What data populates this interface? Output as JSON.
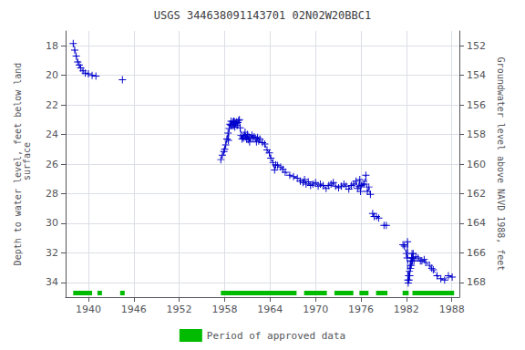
{
  "chart_data": {
    "type": "line",
    "title": "USGS 344638091143701 02N02W20BBC1",
    "ylabel": "Depth to water level, feet below land\n surface",
    "y2label": "Groundwater level above NAVD 1988, feet",
    "xlim": [
      1937,
      1989
    ],
    "xticks": [
      1940,
      1946,
      1952,
      1958,
      1964,
      1970,
      1976,
      1982,
      1988
    ],
    "ylim": [
      17,
      35
    ],
    "yticks": [
      18,
      20,
      22,
      24,
      26,
      28,
      30,
      32,
      34
    ],
    "y2lim": [
      151,
      169
    ],
    "y2ticks": [
      168,
      166,
      164,
      162,
      160,
      158,
      156,
      154,
      152
    ],
    "grid": true,
    "x": [
      1938.0,
      1938.2,
      1938.4,
      1938.6,
      1938.8,
      1939.0,
      1939.3,
      1939.6,
      1940.0,
      1940.5,
      1941.0,
      null,
      1944.5,
      null,
      1957.5,
      1957.7,
      1957.9,
      1958.0,
      1958.15,
      1958.3,
      1958.45,
      1958.5,
      1958.6,
      1958.7,
      1958.8,
      1958.85,
      1958.9,
      1959.0,
      1959.1,
      1959.15,
      1959.2,
      1959.25,
      1959.3,
      1959.35,
      1959.45,
      1959.55,
      1959.65,
      1959.75,
      1959.85,
      1959.95,
      1960.05,
      1960.15,
      1960.3,
      1960.4,
      1960.5,
      1960.6,
      1960.7,
      1960.8,
      1960.9,
      1961.0,
      1961.1,
      1961.2,
      1961.3,
      1961.45,
      1961.6,
      1961.75,
      1961.9,
      1962.05,
      1962.2,
      1962.35,
      1962.5,
      1962.65,
      1963.0,
      1963.3,
      1963.6,
      1963.9,
      1964.1,
      1964.4,
      1964.6,
      1964.75,
      1965.0,
      1965.4,
      1965.7,
      1966.0,
      1966.6,
      1967.1,
      1967.6,
      1968.0,
      1968.35,
      1968.55,
      1968.75,
      1969.05,
      1969.35,
      1969.65,
      1970.0,
      1970.35,
      1970.65,
      1971.0,
      1971.4,
      1971.75,
      1972.05,
      1972.35,
      1972.65,
      1973.05,
      1973.4,
      1973.75,
      1974.05,
      null,
      1974.4,
      1974.75,
      1975.05,
      1975.35,
      1975.55,
      1975.75,
      1975.85,
      1975.95,
      null,
      1976.05,
      1976.25,
      1976.45,
      1976.65,
      1976.85,
      1977.05,
      1977.25,
      null,
      1977.55,
      1977.75,
      1978.05,
      1978.35,
      null,
      1979.05,
      1979.35,
      null,
      1981.55,
      1981.75,
      1982.0,
      1982.1,
      1982.15,
      1982.2,
      1982.25,
      1982.3,
      1982.35,
      1982.4,
      1982.45,
      1982.5,
      1982.55,
      1982.6,
      1982.65,
      1982.7,
      1982.75,
      1982.8,
      1982.85,
      1982.9,
      1983.0,
      1983.25,
      1983.55,
      1983.85,
      1984.05,
      1984.35,
      1984.55,
      1985.05,
      1985.35,
      1985.55,
      1986.05,
      1986.55,
      1987.05,
      1987.55,
      1988.05
    ],
    "series": [
      {
        "color": "#0000cc",
        "marker": "plus",
        "line_style": "dashed",
        "values": [
          17.85,
          18.3,
          18.7,
          19.1,
          19.3,
          19.5,
          19.7,
          19.85,
          19.9,
          20.0,
          20.05,
          null,
          20.3,
          null,
          25.7,
          25.4,
          25.15,
          25.0,
          24.7,
          24.3,
          23.9,
          24.4,
          23.6,
          23.3,
          23.35,
          23.1,
          23.4,
          23.3,
          23.15,
          23.4,
          23.1,
          23.35,
          23.15,
          23.5,
          23.25,
          23.15,
          23.4,
          23.2,
          23.05,
          23.0,
          23.55,
          24.05,
          24.3,
          24.15,
          24.25,
          24.05,
          23.85,
          24.15,
          24.3,
          24.0,
          24.35,
          24.15,
          24.5,
          24.25,
          24.05,
          24.25,
          24.15,
          24.25,
          24.5,
          24.2,
          24.45,
          24.3,
          24.55,
          24.65,
          25.05,
          25.25,
          25.6,
          25.9,
          26.4,
          26.05,
          26.1,
          26.2,
          26.35,
          26.55,
          26.75,
          26.85,
          26.95,
          27.15,
          27.25,
          27.05,
          27.35,
          27.2,
          27.45,
          27.35,
          27.25,
          27.5,
          27.35,
          27.45,
          27.65,
          27.45,
          27.35,
          27.25,
          27.5,
          27.6,
          27.5,
          27.35,
          27.5,
          null,
          27.7,
          27.45,
          27.35,
          27.15,
          27.65,
          27.5,
          27.05,
          27.85,
          null,
          27.45,
          27.35,
          27.35,
          26.75,
          27.85,
          27.55,
          28.05,
          null,
          29.35,
          29.55,
          29.55,
          29.65,
          null,
          30.15,
          30.15,
          null,
          31.45,
          31.55,
          32.05,
          32.35,
          31.25,
          33.85,
          34.05,
          33.55,
          33.85,
          33.25,
          33.55,
          32.85,
          33.05,
          32.55,
          32.85,
          32.35,
          32.05,
          32.55,
          32.35,
          32.05,
          32.55,
          32.25,
          32.35,
          32.55,
          32.55,
          32.45,
          32.65,
          32.85,
          33.05,
          33.15,
          33.55,
          33.75,
          33.85,
          33.55,
          33.65
        ]
      }
    ],
    "periods": {
      "name": "Period of approved data",
      "color": "#00bb00",
      "ranges": [
        [
          1938.0,
          1940.5
        ],
        [
          1941.2,
          1941.8
        ],
        [
          1944.2,
          1944.8
        ],
        [
          1957.5,
          1967.5
        ],
        [
          1968.5,
          1971.5
        ],
        [
          1972.5,
          1975.0
        ],
        [
          1975.8,
          1977.0
        ],
        [
          1978.0,
          1979.5
        ],
        [
          1981.5,
          1982.3
        ],
        [
          1982.8,
          1988.3
        ]
      ]
    }
  }
}
